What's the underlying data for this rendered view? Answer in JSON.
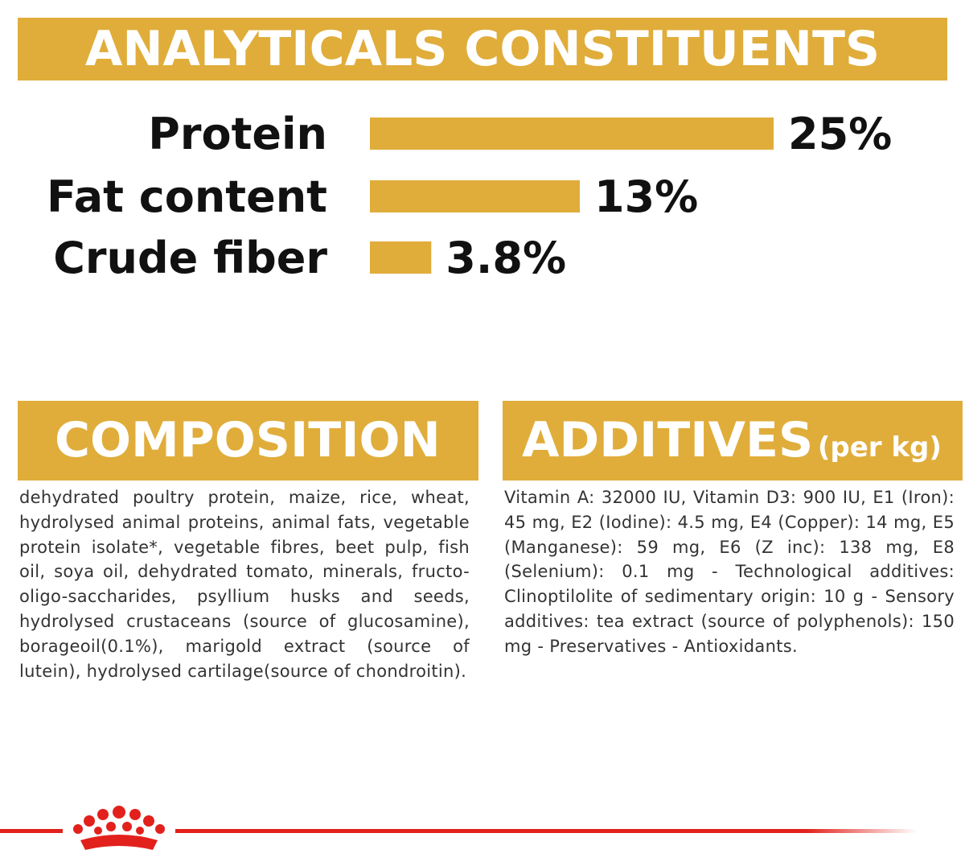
{
  "chart_data": {
    "type": "bar",
    "title": "ANALYTICALS CONSTITUENTS",
    "categories": [
      "Protein",
      "Fat content",
      "Crude fiber"
    ],
    "values": [
      25,
      13,
      3.8
    ],
    "value_labels": [
      "25%",
      "13%",
      "3.8%"
    ],
    "color": "#e0ad3b"
  },
  "composition": {
    "title": "COMPOSITION",
    "text": "dehydrated poultry protein, maize, rice, wheat, hydrolysed animal proteins, animal fats, vegetable protein isolate*, vegetable fibres, beet pulp, fish oil, soya oil, dehydrated tomato, minerals, fructo-oligo-saccharides, psyllium husks and seeds, hydrolysed crustaceans (source of glucosamine), borageoil(0.1%), marigold extract (source of lutein), hydrolysed cartilage(source of chondroitin)."
  },
  "additives": {
    "title": "ADDITIVES",
    "subtitle": "(per kg)",
    "text": "Vitamin A: 32000 IU, Vitamin D3: 900 IU, E1 (Iron): 45 mg, E2 (Iodine): 4.5 mg, E4 (Copper): 14 mg, E5 (Manganese): 59 mg, E6 (Z inc): 138 mg, E8 (Selenium): 0.1 mg - Technological additives: Clinoptilolite of sedimentary origin: 10 g - Sensory additives: tea extract (source of polyphenols): 150 mg - Preservatives - Antioxidants."
  }
}
